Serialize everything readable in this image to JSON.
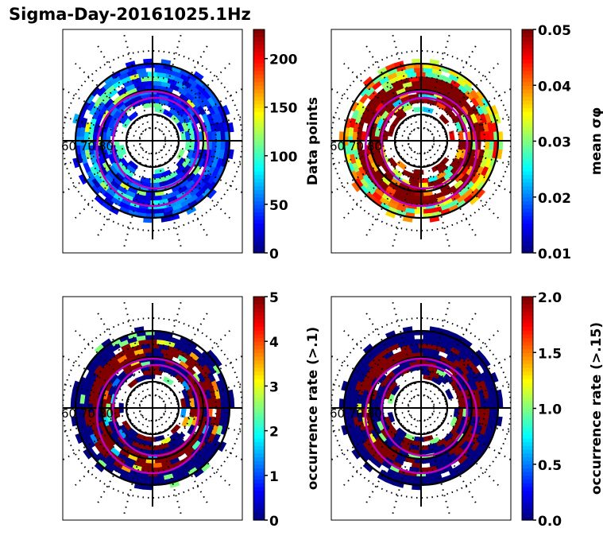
{
  "title": "Sigma-Day-20161025.1Hz",
  "colormap": "jet",
  "overlay_color": "#bf00bf",
  "chart_data": [
    {
      "type": "heatmap",
      "projection": "polar (magnetic latitude / MLT dial)",
      "panel": "top-left",
      "latitude_labels": [
        "60",
        "70",
        "80"
      ],
      "colorbar": {
        "label": "Data points",
        "range": [
          0,
          230
        ],
        "ticks": [
          "0",
          "50",
          "100",
          "150",
          "200"
        ],
        "tick_values": [
          0,
          50,
          100,
          150,
          200
        ]
      },
      "dominant_value": "low (blue, ~10-60); ring of higher counts ~100-200 near 70-75 lat on dawn/dusk sides"
    },
    {
      "type": "heatmap",
      "projection": "polar (magnetic latitude / MLT dial)",
      "panel": "top-right",
      "latitude_labels": [
        "60",
        "70",
        "80"
      ],
      "colorbar": {
        "label": "mean σφ",
        "range": [
          0.01,
          0.05
        ],
        "ticks": [
          "0.01",
          "0.02",
          "0.03",
          "0.04",
          "0.05"
        ],
        "tick_values": [
          0.01,
          0.02,
          0.03,
          0.04,
          0.05
        ]
      },
      "dominant_value": "high (dark red, >=0.05) in auroral oval; 0.02-0.04 at poleward edge"
    },
    {
      "type": "heatmap",
      "projection": "polar (magnetic latitude / MLT dial)",
      "panel": "bottom-left",
      "latitude_labels": [
        "60",
        "70",
        "80"
      ],
      "colorbar": {
        "label": "occurrence rate (>.1)",
        "range": [
          0,
          5
        ],
        "ticks": [
          "0",
          "1",
          "2",
          "3",
          "4",
          "5"
        ],
        "tick_values": [
          0,
          1,
          2,
          3,
          4,
          5
        ]
      },
      "dominant_value": "mix of 0 (dark blue) and >=5 (dark red) bins"
    },
    {
      "type": "heatmap",
      "projection": "polar (magnetic latitude / MLT dial)",
      "panel": "bottom-right",
      "latitude_labels": [
        "60",
        "70",
        "80"
      ],
      "colorbar": {
        "label": "occurrence rate (>.15)",
        "range": [
          0,
          2
        ],
        "ticks": [
          "0.0",
          "0.5",
          "1.0",
          "1.5",
          "2.0"
        ],
        "tick_values": [
          0,
          0.5,
          1.0,
          1.5,
          2.0
        ]
      },
      "dominant_value": "mostly 0 (dark blue) with band of >=2 (dark red)"
    }
  ]
}
